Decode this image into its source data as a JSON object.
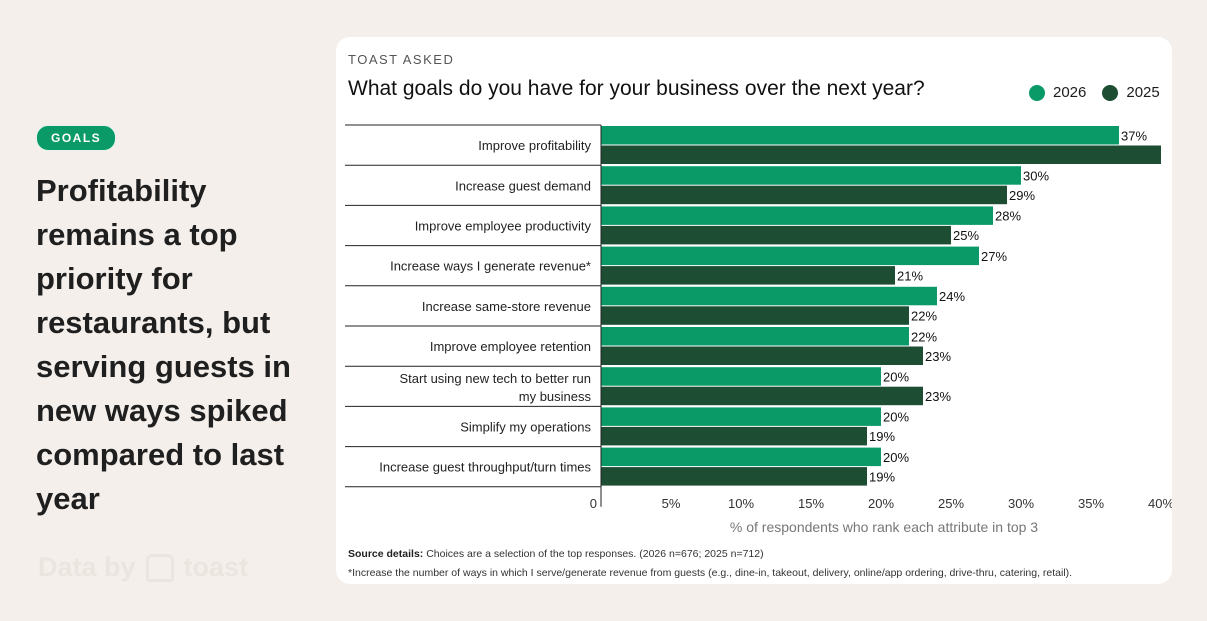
{
  "badge": "GOALS",
  "headline": "Profitability remains a top priority for restaurants, but serving guests in new ways spiked compared to last year",
  "credit": {
    "prefix": "Data by",
    "brand": "toast"
  },
  "card": {
    "kicker": "TOAST ASKED",
    "title": "What goals do you have for your business over the next year?",
    "source_label": "Source details:",
    "source_text": " Choices are a selection of the top responses. (2026 n=676; 2025 n=712)",
    "footnote": "*Increase the number of ways in which I serve/generate revenue from guests (e.g., dine-in, takeout, delivery, online/app ordering, drive-thru, catering, retail)."
  },
  "colors": {
    "s2026": "#0a9a67",
    "s2025": "#1d4d33"
  },
  "chart_data": {
    "type": "bar",
    "orientation": "horizontal",
    "categories": [
      "Improve profitability",
      "Increase guest demand",
      "Improve employee productivity",
      "Increase ways I generate revenue*",
      "Increase same-store revenue",
      "Improve employee retention",
      "Start using new tech to better run my business",
      "Simplify my operations",
      "Increase guest throughput/turn times"
    ],
    "series": [
      {
        "name": "2026",
        "values": [
          37,
          30,
          28,
          27,
          24,
          22,
          20,
          20,
          20
        ],
        "labels": [
          "37%",
          "30%",
          "28%",
          "27%",
          "24%",
          "22%",
          "20%",
          "20%",
          "20%"
        ]
      },
      {
        "name": "2025",
        "values": [
          40,
          29,
          25,
          21,
          22,
          23,
          23,
          19,
          19
        ],
        "labels": [
          "",
          "29%",
          "25%",
          "21%",
          "22%",
          "23%",
          "23%",
          "19%",
          "19%"
        ]
      }
    ],
    "xticks": [
      "0",
      "5%",
      "10%",
      "15%",
      "20%",
      "25%",
      "30%",
      "35%",
      "40%"
    ],
    "xlabel": "% of respondents who rank each attribute in top 3",
    "xlim": [
      0,
      40
    ]
  }
}
